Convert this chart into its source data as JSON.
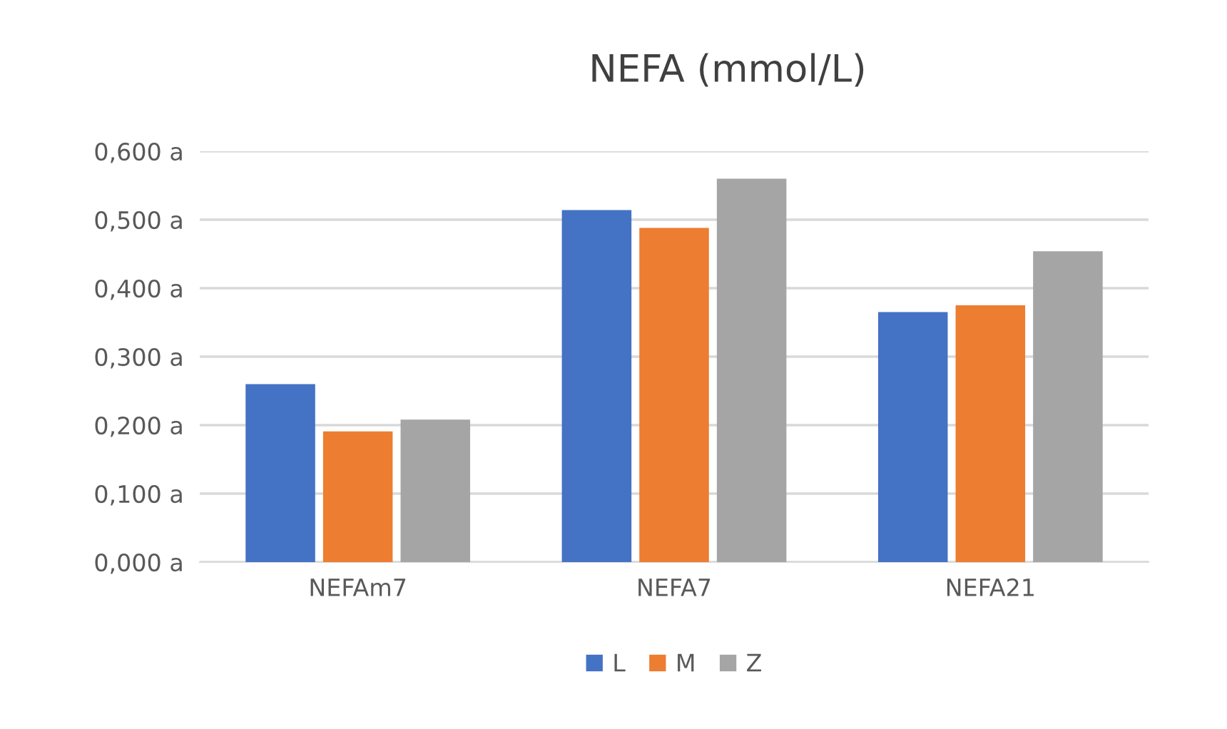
{
  "chart_data": {
    "type": "bar",
    "title": "NEFA (mmol/L)",
    "categories": [
      "NEFAm7",
      "NEFA7",
      "NEFA21"
    ],
    "series": [
      {
        "name": "L",
        "color": "#4472c4",
        "values": [
          0.26,
          0.514,
          0.365
        ]
      },
      {
        "name": "M",
        "color": "#ed7d31",
        "values": [
          0.191,
          0.488,
          0.375
        ]
      },
      {
        "name": "Z",
        "color": "#a5a5a5",
        "values": [
          0.208,
          0.56,
          0.454
        ]
      }
    ],
    "ylim": [
      0,
      0.6
    ],
    "yticks": [
      {
        "value": 0,
        "label": "0,000 a"
      },
      {
        "value": 0.1,
        "label": "0,100 a"
      },
      {
        "value": 0.2,
        "label": "0,200 a"
      },
      {
        "value": 0.3,
        "label": "0,300 a"
      },
      {
        "value": 0.4,
        "label": "0,400 a"
      },
      {
        "value": 0.5,
        "label": "0,500 a"
      },
      {
        "value": 0.6,
        "label": "0,600 a"
      }
    ],
    "grid": "y",
    "legend": "bottom"
  }
}
